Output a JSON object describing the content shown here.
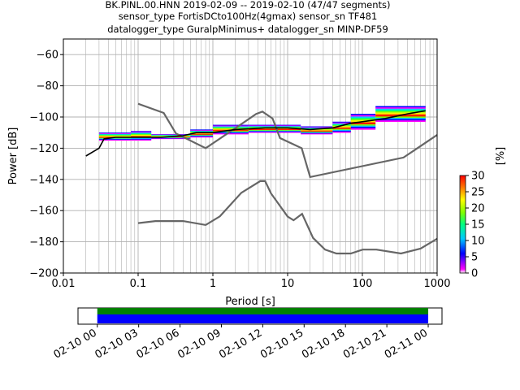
{
  "title_lines": [
    "BK.PINL.00.HNN   2019-02-09 -- 2019-02-10  (47/47 segments)",
    "sensor_type FortisDCto100Hz(4gmax) sensor_sn TF481",
    "datalogger_type GuralpMinimus+ datalogger_sn MINP-DF59"
  ],
  "chart_data": {
    "type": "heatmap",
    "title": "BK.PINL.00.HNN   2019-02-09 -- 2019-02-10  (47/47 segments)",
    "xlabel": "Period [s]",
    "ylabel": "Power [dB]",
    "xscale": "log",
    "xlim": [
      0.01,
      1000
    ],
    "ylim": [
      -200,
      -50
    ],
    "xticks": [
      0.01,
      0.1,
      1,
      10,
      100,
      1000
    ],
    "xtick_labels": [
      "0.01",
      "0.1",
      "1",
      "10",
      "100",
      "1000"
    ],
    "yticks": [
      -60,
      -80,
      -100,
      -120,
      -140,
      -160,
      -180,
      -200
    ],
    "ytick_labels": [
      "−60",
      "−80",
      "−100",
      "−120",
      "−140",
      "−160",
      "−180",
      "−200"
    ],
    "grid": true,
    "colorbar": {
      "label": "[%]",
      "range": [
        0,
        30
      ],
      "ticks": [
        0,
        5,
        10,
        15,
        20,
        25,
        30
      ],
      "tick_labels": [
        "0",
        "5",
        "10",
        "15",
        "20",
        "25",
        "30"
      ]
    },
    "mode_curve": [
      [
        0.02,
        -125
      ],
      [
        0.03,
        -120
      ],
      [
        0.035,
        -114
      ],
      [
        0.05,
        -113
      ],
      [
        0.1,
        -113
      ],
      [
        0.2,
        -113
      ],
      [
        0.4,
        -112
      ],
      [
        0.6,
        -110
      ],
      [
        1,
        -110
      ],
      [
        2,
        -108
      ],
      [
        5,
        -107
      ],
      [
        10,
        -107
      ],
      [
        20,
        -108
      ],
      [
        40,
        -107
      ],
      [
        70,
        -104
      ],
      [
        100,
        -103
      ],
      [
        200,
        -101
      ],
      [
        400,
        -98
      ],
      [
        700,
        -96
      ]
    ],
    "noise_model_high": [
      [
        0.1,
        -91.5
      ],
      [
        0.22,
        -97.4
      ],
      [
        0.32,
        -110.5
      ],
      [
        0.8,
        -120
      ],
      [
        2.5,
        -104
      ],
      [
        3.8,
        -98
      ],
      [
        4.6,
        -96.5
      ],
      [
        6.3,
        -101
      ],
      [
        7.9,
        -113.5
      ],
      [
        15.4,
        -120
      ],
      [
        20,
        -138.5
      ],
      [
        354.8,
        -126
      ],
      [
        1000,
        -111.5
      ]
    ],
    "noise_model_low": [
      [
        0.1,
        -168
      ],
      [
        0.17,
        -166.7
      ],
      [
        0.4,
        -166.7
      ],
      [
        0.8,
        -169.2
      ],
      [
        1.24,
        -163.7
      ],
      [
        2.4,
        -148.6
      ],
      [
        4.3,
        -141.1
      ],
      [
        5,
        -141.1
      ],
      [
        6,
        -149
      ],
      [
        10,
        -163.8
      ],
      [
        12,
        -166.2
      ],
      [
        15.6,
        -162.1
      ],
      [
        21.9,
        -177.5
      ],
      [
        31.6,
        -185
      ],
      [
        45,
        -187.5
      ],
      [
        70,
        -187.5
      ],
      [
        101,
        -185
      ],
      [
        154,
        -185
      ],
      [
        328,
        -187.5
      ],
      [
        600,
        -184.4
      ],
      [
        1000,
        -178
      ]
    ],
    "ppsd_bands": [
      {
        "x": [
          0.03,
          0.08
        ],
        "y": [
          -115,
          -110
        ]
      },
      {
        "x": [
          0.08,
          0.15
        ],
        "y": [
          -115,
          -109
        ]
      },
      {
        "x": [
          0.15,
          0.5
        ],
        "y": [
          -114,
          -111
        ]
      },
      {
        "x": [
          0.5,
          1.0
        ],
        "y": [
          -113,
          -108
        ]
      },
      {
        "x": [
          1.0,
          3.0
        ],
        "y": [
          -111,
          -105
        ]
      },
      {
        "x": [
          3.0,
          15
        ],
        "y": [
          -110,
          -105
        ]
      },
      {
        "x": [
          15,
          40
        ],
        "y": [
          -111,
          -106
        ]
      },
      {
        "x": [
          40,
          70
        ],
        "y": [
          -110,
          -103
        ]
      },
      {
        "x": [
          70,
          150
        ],
        "y": [
          -108,
          -98
        ]
      },
      {
        "x": [
          150,
          700
        ],
        "y": [
          -103,
          -93
        ]
      }
    ],
    "coverage": {
      "xtick_labels": [
        "02-10 00",
        "02-10 03",
        "02-10 06",
        "02-10 09",
        "02-10 12",
        "02-10 15",
        "02-10 18",
        "02-10 21",
        "02-11 00"
      ],
      "start_hour": 0,
      "end_hour": 24,
      "data_bar_color": "#008000",
      "processed_bar_color": "#0000ff"
    },
    "colors": {
      "noise_model": "#666666",
      "mode_curve": "#000000"
    }
  }
}
